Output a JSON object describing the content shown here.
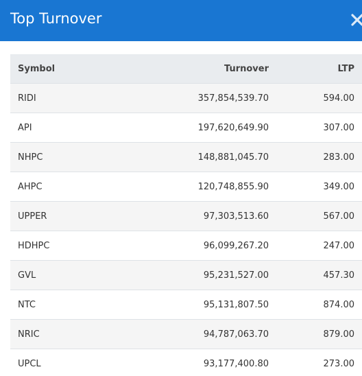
{
  "modal": {
    "title": "Top Turnover",
    "close_icon": "close-icon"
  },
  "table": {
    "headers": {
      "symbol": "Symbol",
      "turnover": "Turnover",
      "ltp": "LTP"
    },
    "rows": [
      {
        "symbol": "RIDI",
        "turnover": "357,854,539.70",
        "ltp": "594.00"
      },
      {
        "symbol": "API",
        "turnover": "197,620,649.90",
        "ltp": "307.00"
      },
      {
        "symbol": "NHPC",
        "turnover": "148,881,045.70",
        "ltp": "283.00"
      },
      {
        "symbol": "AHPC",
        "turnover": "120,748,855.90",
        "ltp": "349.00"
      },
      {
        "symbol": "UPPER",
        "turnover": "97,303,513.60",
        "ltp": "567.00"
      },
      {
        "symbol": "HDHPC",
        "turnover": "96,099,267.20",
        "ltp": "247.00"
      },
      {
        "symbol": "GVL",
        "turnover": "95,231,527.00",
        "ltp": "457.30"
      },
      {
        "symbol": "NTC",
        "turnover": "95,131,807.50",
        "ltp": "874.00"
      },
      {
        "symbol": "NRIC",
        "turnover": "94,787,063.70",
        "ltp": "879.00"
      },
      {
        "symbol": "UPCL",
        "turnover": "93,177,400.80",
        "ltp": "273.00"
      }
    ]
  },
  "colors": {
    "header_bg": "#1976d2",
    "title_text": "#ffffff",
    "table_head_bg": "#e9ecef",
    "row_stripe": "#f5f5f5"
  }
}
